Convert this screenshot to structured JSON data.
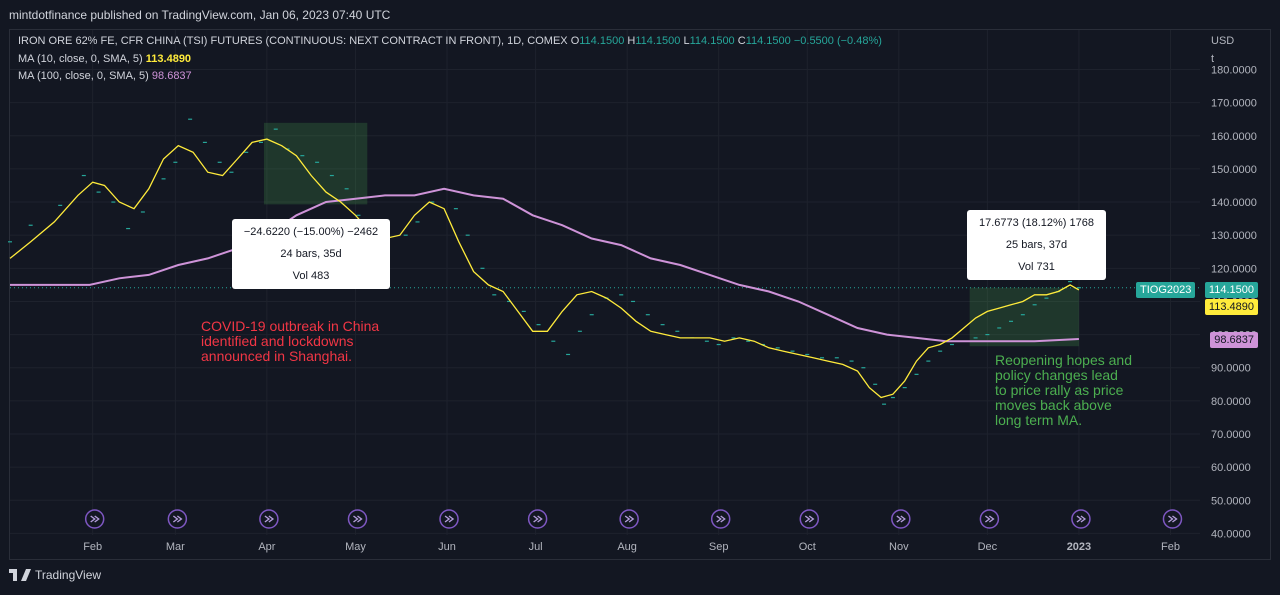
{
  "publisher": "mintdotfinance published on TradingView.com, Jan 06, 2023 07:40 UTC",
  "legend": {
    "symbol_line": "IRON ORE 62% FE, CFR CHINA (TSI) FUTURES (CONTINUOUS: NEXT CONTRACT IN FRONT), 1D, COMEX",
    "o_label": "O",
    "o": "114.1500",
    "h_label": "H",
    "h": "114.1500",
    "l_label": "L",
    "l": "114.1500",
    "c_label": "C",
    "c": "114.1500",
    "change": "−0.5500 (−0.48%)",
    "ma10_label": "MA (10, close, 0, SMA, 5)",
    "ma10_value": "113.4890",
    "ma100_label": "MA (100, close, 0, SMA, 5)",
    "ma100_value": "98.6837"
  },
  "currency": "USD",
  "currency_sub": "t",
  "measure_boxes": [
    {
      "line1": "−24.6220 (−15.00%) −2462",
      "line2": "24 bars, 35d",
      "line3": "Vol 483"
    },
    {
      "line1": "17.6773 (18.12%) 1768",
      "line2": "25 bars, 37d",
      "line3": "Vol 731"
    }
  ],
  "annotations": {
    "covid": "COVID-19 outbreak in China\nidentified and lockdowns\nannounced in Shanghai.",
    "reopening": "Reopening hopes and\npolicy changes lead\nto price rally as price\nmoves back above\nlong term MA."
  },
  "price_tags": {
    "ticker": "TIOG2023",
    "last": "114.1500",
    "ma10": "113.4890",
    "ma100": "98.6837"
  },
  "footer": "TradingView",
  "colors": {
    "background": "#131722",
    "up": "#26a69a",
    "ma10": "#ffeb3b",
    "ma100": "#ce93d8",
    "annotation_red": "#f23645",
    "annotation_green": "#4caf50"
  },
  "chart_data": {
    "type": "line",
    "title": "IRON ORE 62% FE, CFR CHINA (TSI) FUTURES, 1D, COMEX",
    "ylabel": "USD / t",
    "ylim": [
      36.5,
      188
    ],
    "y_ticks": [
      "180.0000",
      "170.0000",
      "160.0000",
      "150.0000",
      "140.0000",
      "130.0000",
      "120.0000",
      "110.0000",
      "100.0000",
      "90.0000",
      "80.0000",
      "70.0000",
      "60.0000",
      "50.0000",
      "40.0000"
    ],
    "x_tick_labels": [
      "Feb",
      "Mar",
      "Apr",
      "May",
      "Jun",
      "Jul",
      "Aug",
      "Sep",
      "Oct",
      "Nov",
      "Dec",
      "2023",
      "Feb"
    ],
    "x_tick_days": [
      31,
      59,
      90,
      120,
      151,
      181,
      212,
      243,
      273,
      304,
      334,
      365,
      396
    ],
    "x_range_days": [
      3,
      406
    ],
    "series": [
      {
        "name": "IRON ORE price",
        "points": [
          [
            3,
            128
          ],
          [
            10,
            133
          ],
          [
            20,
            139
          ],
          [
            28,
            148
          ],
          [
            33,
            143
          ],
          [
            38,
            140
          ],
          [
            43,
            132
          ],
          [
            48,
            137
          ],
          [
            55,
            147
          ],
          [
            59,
            152
          ],
          [
            64,
            165
          ],
          [
            69,
            158
          ],
          [
            74,
            152
          ],
          [
            78,
            149
          ],
          [
            83,
            155
          ],
          [
            88,
            158
          ],
          [
            93,
            162
          ],
          [
            97,
            156
          ],
          [
            102,
            154
          ],
          [
            107,
            152
          ],
          [
            112,
            148
          ],
          [
            117,
            144
          ],
          [
            121,
            136
          ],
          [
            126,
            130
          ],
          [
            131,
            132
          ],
          [
            137,
            130
          ],
          [
            141,
            134
          ],
          [
            146,
            140
          ],
          [
            150,
            144
          ],
          [
            154,
            138
          ],
          [
            158,
            130
          ],
          [
            163,
            120
          ],
          [
            167,
            112
          ],
          [
            172,
            110
          ],
          [
            177,
            107
          ],
          [
            182,
            103
          ],
          [
            187,
            98
          ],
          [
            192,
            94
          ],
          [
            196,
            101
          ],
          [
            200,
            106
          ],
          [
            205,
            111
          ],
          [
            210,
            112
          ],
          [
            214,
            110
          ],
          [
            219,
            106
          ],
          [
            224,
            103
          ],
          [
            229,
            101
          ],
          [
            234,
            99
          ],
          [
            239,
            98
          ],
          [
            243,
            97
          ],
          [
            248,
            99
          ],
          [
            253,
            98
          ],
          [
            258,
            97
          ],
          [
            263,
            96
          ],
          [
            268,
            95
          ],
          [
            273,
            94
          ],
          [
            278,
            93
          ],
          [
            283,
            93
          ],
          [
            288,
            92
          ],
          [
            292,
            90
          ],
          [
            296,
            85
          ],
          [
            299,
            79
          ],
          [
            302,
            81
          ],
          [
            306,
            84
          ],
          [
            310,
            88
          ],
          [
            314,
            92
          ],
          [
            318,
            95
          ],
          [
            322,
            97
          ],
          [
            326,
            98
          ],
          [
            330,
            99
          ],
          [
            334,
            100
          ],
          [
            338,
            102
          ],
          [
            342,
            104
          ],
          [
            346,
            106
          ],
          [
            350,
            109
          ],
          [
            354,
            111
          ],
          [
            358,
            113
          ],
          [
            362,
            116
          ],
          [
            365,
            114.15
          ]
        ]
      },
      {
        "name": "MA (10, close, 0, SMA, 5)",
        "value": 113.489,
        "points": [
          [
            3,
            123
          ],
          [
            10,
            128
          ],
          [
            18,
            134
          ],
          [
            26,
            142
          ],
          [
            31,
            146
          ],
          [
            35,
            145
          ],
          [
            40,
            140
          ],
          [
            45,
            138
          ],
          [
            50,
            144
          ],
          [
            55,
            153
          ],
          [
            60,
            157
          ],
          [
            65,
            155
          ],
          [
            70,
            149
          ],
          [
            75,
            148
          ],
          [
            80,
            153
          ],
          [
            85,
            158
          ],
          [
            90,
            159
          ],
          [
            95,
            157
          ],
          [
            100,
            154
          ],
          [
            105,
            148
          ],
          [
            110,
            143
          ],
          [
            115,
            140
          ],
          [
            120,
            136
          ],
          [
            125,
            131
          ],
          [
            130,
            129
          ],
          [
            135,
            130
          ],
          [
            140,
            136
          ],
          [
            145,
            140
          ],
          [
            150,
            138
          ],
          [
            155,
            128
          ],
          [
            160,
            119
          ],
          [
            165,
            115
          ],
          [
            170,
            113
          ],
          [
            175,
            107
          ],
          [
            180,
            101
          ],
          [
            185,
            101
          ],
          [
            190,
            107
          ],
          [
            195,
            112
          ],
          [
            200,
            113
          ],
          [
            205,
            111
          ],
          [
            210,
            108
          ],
          [
            215,
            104
          ],
          [
            220,
            101
          ],
          [
            225,
            100
          ],
          [
            230,
            99
          ],
          [
            235,
            99
          ],
          [
            240,
            99
          ],
          [
            245,
            98
          ],
          [
            250,
            99
          ],
          [
            255,
            98
          ],
          [
            260,
            96
          ],
          [
            265,
            95
          ],
          [
            270,
            94
          ],
          [
            275,
            93
          ],
          [
            280,
            92
          ],
          [
            285,
            91
          ],
          [
            290,
            89
          ],
          [
            294,
            84
          ],
          [
            298,
            81
          ],
          [
            302,
            82
          ],
          [
            306,
            86
          ],
          [
            310,
            92
          ],
          [
            314,
            96
          ],
          [
            318,
            97
          ],
          [
            322,
            99
          ],
          [
            326,
            102
          ],
          [
            330,
            105
          ],
          [
            334,
            107
          ],
          [
            338,
            108
          ],
          [
            342,
            109
          ],
          [
            346,
            110
          ],
          [
            350,
            112
          ],
          [
            354,
            112
          ],
          [
            358,
            113
          ],
          [
            362,
            115
          ],
          [
            365,
            113.489
          ]
        ]
      },
      {
        "name": "MA (100, close, 0, SMA, 5)",
        "value": 98.6837,
        "points": [
          [
            3,
            115
          ],
          [
            20,
            115
          ],
          [
            30,
            115
          ],
          [
            40,
            117
          ],
          [
            50,
            118
          ],
          [
            60,
            121
          ],
          [
            70,
            123
          ],
          [
            80,
            126
          ],
          [
            90,
            130
          ],
          [
            100,
            136
          ],
          [
            110,
            140
          ],
          [
            120,
            141
          ],
          [
            130,
            142
          ],
          [
            140,
            142
          ],
          [
            150,
            144
          ],
          [
            160,
            142
          ],
          [
            170,
            141
          ],
          [
            180,
            136
          ],
          [
            190,
            133
          ],
          [
            200,
            129
          ],
          [
            210,
            127
          ],
          [
            220,
            123
          ],
          [
            230,
            121
          ],
          [
            240,
            118
          ],
          [
            250,
            115
          ],
          [
            260,
            113
          ],
          [
            270,
            110
          ],
          [
            280,
            106
          ],
          [
            290,
            102
          ],
          [
            300,
            100
          ],
          [
            310,
            99
          ],
          [
            320,
            98
          ],
          [
            330,
            98
          ],
          [
            340,
            98
          ],
          [
            350,
            98
          ],
          [
            365,
            98.6837
          ]
        ]
      }
    ],
    "ranges": [
      {
        "from_day": 89,
        "to_day": 124,
        "from_value": 163.9,
        "to_value": 139.3,
        "label": "−24.6220 (−15.00%) −2462"
      },
      {
        "from_day": 328,
        "to_day": 365,
        "from_value": 96.5,
        "to_value": 114.15,
        "label": "17.6773 (18.12%) 1768"
      }
    ],
    "event_markers_days": [
      31,
      59,
      90,
      120,
      151,
      181,
      212,
      243,
      273,
      304,
      334,
      365,
      396
    ]
  }
}
